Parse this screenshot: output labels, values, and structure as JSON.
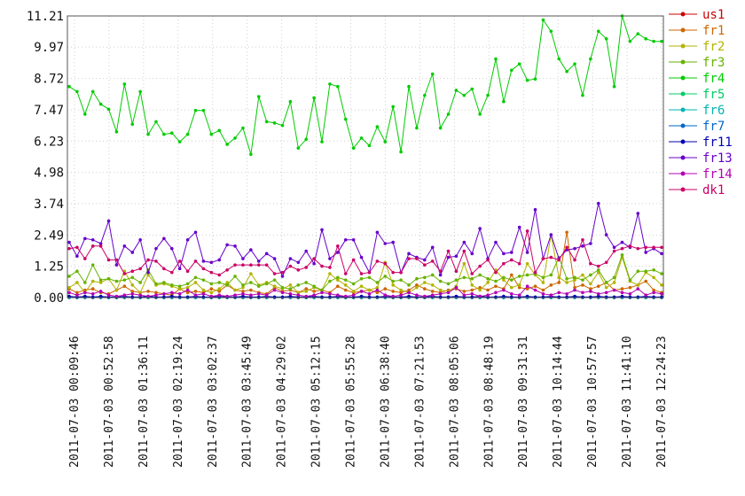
{
  "chart_data": {
    "type": "line",
    "title": "",
    "xlabel": "",
    "ylabel": "",
    "grid": true,
    "legend_position": "right",
    "ylim": [
      0,
      11.21
    ],
    "y_ticks": [
      "0.00",
      "1.25",
      "2.49",
      "3.74",
      "4.98",
      "6.23",
      "7.47",
      "8.72",
      "9.97",
      "11.21"
    ],
    "x_tick_labels": [
      "2011-07-03 00:09:46",
      "2011-07-03 00:52:58",
      "2011-07-03 01:36:11",
      "2011-07-03 02:19:24",
      "2011-07-03 03:02:37",
      "2011-07-03 03:45:49",
      "2011-07-03 04:29:02",
      "2011-07-03 05:12:15",
      "2011-07-03 05:55:28",
      "2011-07-03 06:38:40",
      "2011-07-03 07:21:53",
      "2011-07-03 08:05:06",
      "2011-07-03 08:48:19",
      "2011-07-03 09:31:31",
      "2011-07-03 10:14:44",
      "2011-07-03 10:57:57",
      "2011-07-03 11:41:10",
      "2011-07-03 12:24:23"
    ],
    "series": [
      {
        "name": "us1",
        "color": "#cc0000",
        "values": [
          0,
          0,
          0,
          0,
          0,
          0,
          0,
          0,
          0,
          0,
          0,
          0,
          0,
          0,
          0,
          0,
          0,
          0,
          0,
          0,
          0,
          0,
          0,
          0,
          0,
          0,
          0,
          0,
          0,
          0,
          0,
          0,
          0,
          0,
          0,
          0,
          0,
          0,
          0,
          0,
          0,
          0,
          0,
          0,
          0,
          0,
          0,
          0,
          0,
          0,
          0,
          0,
          0,
          0,
          0,
          0,
          0,
          0,
          0,
          0,
          0,
          0,
          0,
          0,
          0,
          0,
          0,
          0,
          0,
          0,
          0,
          0,
          0,
          0,
          0,
          0
        ]
      },
      {
        "name": "fr1",
        "color": "#cc6600",
        "values": [
          0.35,
          0.2,
          0.3,
          0.35,
          0.2,
          0.15,
          0.3,
          0.45,
          0.25,
          0.2,
          0.25,
          0.2,
          0.15,
          0.1,
          0.35,
          0.2,
          0.25,
          0.2,
          0.35,
          0.25,
          0.5,
          0.3,
          0.25,
          0.3,
          0.2,
          0.15,
          0.4,
          0.25,
          0.3,
          0.2,
          0.35,
          0.25,
          0.3,
          0.2,
          0.45,
          0.3,
          0.2,
          0.25,
          0.3,
          0.2,
          0.35,
          0.25,
          0.2,
          0.3,
          0.5,
          0.35,
          0.25,
          0.2,
          0.3,
          0.35,
          0.25,
          0.3,
          0.4,
          0.3,
          0.45,
          0.35,
          0.9,
          0.4,
          0.35,
          0.45,
          0.3,
          0.5,
          0.6,
          2.6,
          0.4,
          0.5,
          0.35,
          0.45,
          0.6,
          0.3,
          0.35,
          0.4,
          0.5,
          0.65,
          0.3,
          0.2
        ]
      },
      {
        "name": "fr2",
        "color": "#b3b300",
        "values": [
          0.4,
          0.6,
          0.2,
          0.65,
          0.6,
          0.75,
          0.3,
          1.05,
          0.5,
          0.2,
          0.9,
          0.5,
          0.55,
          0.45,
          0.35,
          0.4,
          0.6,
          0.3,
          0.2,
          0.35,
          0.6,
          0.3,
          0.4,
          0.95,
          0.5,
          0.6,
          0.45,
          0.35,
          0.5,
          0.2,
          0.25,
          0.4,
          0.3,
          0.95,
          0.7,
          0.5,
          0.25,
          0.45,
          0.3,
          0.4,
          1.4,
          0.5,
          0.3,
          0.2,
          0.4,
          0.6,
          0.5,
          0.3,
          0.25,
          0.45,
          1.35,
          0.5,
          0.3,
          0.6,
          1.1,
          0.7,
          0.4,
          0.5,
          1.35,
          0.9,
          0.6,
          2.5,
          0.8,
          0.6,
          0.7,
          0.9,
          0.55,
          1.0,
          0.4,
          0.6,
          1.6,
          0.65,
          0.5,
          1.0,
          0.8,
          0.5
        ]
      },
      {
        "name": "fr3",
        "color": "#66b300",
        "values": [
          0.85,
          1.05,
          0.6,
          1.3,
          0.7,
          0.75,
          0.65,
          0.7,
          0.8,
          0.6,
          1.1,
          0.55,
          0.6,
          0.5,
          0.45,
          0.55,
          0.8,
          0.7,
          0.55,
          0.6,
          0.5,
          0.85,
          0.5,
          0.6,
          0.45,
          0.55,
          0.7,
          0.4,
          0.35,
          0.5,
          0.6,
          0.45,
          0.3,
          0.65,
          0.8,
          0.7,
          0.55,
          0.75,
          0.8,
          0.6,
          0.85,
          0.65,
          0.7,
          0.5,
          0.75,
          0.8,
          0.9,
          0.65,
          0.55,
          0.7,
          0.8,
          0.75,
          0.9,
          0.75,
          0.65,
          0.8,
          0.7,
          0.85,
          0.9,
          0.95,
          0.8,
          0.9,
          1.6,
          0.75,
          0.8,
          0.7,
          0.9,
          1.1,
          0.6,
          0.8,
          1.7,
          0.7,
          1.05,
          1.05,
          1.1,
          0.95
        ]
      },
      {
        "name": "fr4",
        "color": "#00cc00",
        "values": [
          8.4,
          8.2,
          7.3,
          8.2,
          7.7,
          7.5,
          6.6,
          8.5,
          6.9,
          8.2,
          6.5,
          7.0,
          6.5,
          6.55,
          6.2,
          6.5,
          7.45,
          7.45,
          6.5,
          6.65,
          6.1,
          6.35,
          6.75,
          5.7,
          8.0,
          7.0,
          6.95,
          6.85,
          7.8,
          5.95,
          6.3,
          7.95,
          6.2,
          8.5,
          8.4,
          7.1,
          5.95,
          6.35,
          6.05,
          6.8,
          6.2,
          7.6,
          5.8,
          8.4,
          6.75,
          8.05,
          8.9,
          6.75,
          7.3,
          8.25,
          8.05,
          8.3,
          7.3,
          8.05,
          9.5,
          7.8,
          9.05,
          9.3,
          8.65,
          8.7,
          11.05,
          10.6,
          9.5,
          9.0,
          9.3,
          8.05,
          9.5,
          10.6,
          10.3,
          8.4,
          11.21,
          10.2,
          10.5,
          10.3,
          10.2,
          10.2
        ]
      },
      {
        "name": "fr5",
        "color": "#00cc66",
        "values": [
          0,
          0,
          0,
          0,
          0,
          0,
          0,
          0,
          0,
          0,
          0,
          0,
          0,
          0,
          0,
          0,
          0,
          0,
          0,
          0,
          0,
          0,
          0,
          0,
          0,
          0,
          0,
          0,
          0,
          0,
          0,
          0,
          0,
          0,
          0,
          0,
          0,
          0,
          0,
          0,
          0,
          0,
          0,
          0,
          0,
          0,
          0,
          0,
          0,
          0,
          0,
          0,
          0,
          0,
          0,
          0,
          0,
          0,
          0,
          0,
          0,
          0,
          0,
          0,
          0,
          0,
          0,
          0,
          0,
          0,
          0,
          0,
          0,
          0,
          0,
          0
        ]
      },
      {
        "name": "fr6",
        "color": "#00b3b3",
        "values": [
          0,
          0,
          0,
          0,
          0,
          0,
          0,
          0,
          0,
          0,
          0,
          0,
          0,
          0,
          0,
          0,
          0,
          0,
          0,
          0,
          0,
          0,
          0,
          0,
          0,
          0,
          0,
          0,
          0,
          0,
          0,
          0,
          0,
          0,
          0,
          0,
          0,
          0,
          0,
          0,
          0,
          0,
          0,
          0,
          0,
          0,
          0,
          0,
          0,
          0,
          0,
          0,
          0,
          0,
          0,
          0,
          0,
          0,
          0,
          0,
          0,
          0,
          0,
          0,
          0,
          0,
          0,
          0,
          0,
          0,
          0,
          0,
          0,
          0,
          0,
          0
        ]
      },
      {
        "name": "fr7",
        "color": "#0066cc",
        "values": [
          0.02,
          0.02,
          0.02,
          0.02,
          0.02,
          0.02,
          0.02,
          0.02,
          0.02,
          0.02,
          0.02,
          0.02,
          0.02,
          0.02,
          0.02,
          0.02,
          0.02,
          0.02,
          0.02,
          0.02,
          0.02,
          0.02,
          0.02,
          0.02,
          0.02,
          0.02,
          0.02,
          0.02,
          0.02,
          0.02,
          0.02,
          0.02,
          0.02,
          0.02,
          0.02,
          0.02,
          0.02,
          0.02,
          0.02,
          0.02,
          0.02,
          0.02,
          0.02,
          0.02,
          0.02,
          0.02,
          0.02,
          0.02,
          0.02,
          0.02,
          0.02,
          0.02,
          0.02,
          0.02,
          0.02,
          0.02,
          0.02,
          0.02,
          0.02,
          0.02,
          0.02,
          0.02,
          0.02,
          0.02,
          0.02,
          0.02,
          0.02,
          0.02,
          0.02,
          0.02,
          0.02,
          0.02,
          0.02,
          0.02,
          0.02,
          0.02
        ]
      },
      {
        "name": "fr11",
        "color": "#0000b3",
        "values": [
          0.05,
          0.02,
          0.05,
          0.02,
          0.05,
          0.02,
          0.02,
          0.05,
          0.02,
          0.02,
          0.05,
          0.02,
          0.02,
          0.05,
          0.02,
          0.02,
          0.05,
          0.02,
          0.02,
          0.05,
          0.02,
          0.02,
          0.05,
          0.02,
          0.02,
          0.05,
          0.02,
          0.02,
          0.05,
          0.02,
          0.02,
          0.05,
          0.02,
          0.02,
          0.05,
          0.02,
          0.02,
          0.05,
          0.02,
          0.02,
          0.05,
          0.02,
          0.02,
          0.05,
          0.02,
          0.02,
          0.05,
          0.02,
          0.02,
          0.05,
          0.02,
          0.02,
          0.05,
          0.02,
          0.02,
          0.05,
          0.02,
          0.02,
          0.05,
          0.02,
          0.02,
          0.05,
          0.02,
          0.02,
          0.05,
          0.02,
          0.02,
          0.05,
          0.02,
          0.02,
          0.05,
          0.02,
          0.02,
          0.05,
          0.02,
          0.02
        ]
      },
      {
        "name": "fr13",
        "color": "#6600cc",
        "values": [
          2.2,
          1.65,
          2.35,
          2.3,
          2.15,
          3.05,
          1.3,
          2.05,
          1.8,
          2.3,
          1.0,
          1.95,
          2.35,
          1.95,
          1.15,
          2.3,
          2.6,
          1.45,
          1.4,
          1.5,
          2.1,
          2.05,
          1.55,
          1.9,
          1.45,
          1.75,
          1.55,
          0.85,
          1.55,
          1.4,
          1.85,
          1.35,
          2.7,
          1.55,
          1.8,
          2.3,
          2.3,
          1.6,
          1.0,
          2.6,
          2.15,
          2.2,
          1.0,
          1.75,
          1.6,
          1.5,
          2.0,
          0.9,
          1.6,
          1.65,
          2.2,
          1.75,
          2.75,
          1.55,
          2.2,
          1.75,
          1.8,
          2.8,
          1.8,
          3.5,
          1.55,
          2.5,
          1.55,
          1.9,
          1.95,
          2.05,
          2.15,
          3.75,
          2.5,
          2.0,
          2.2,
          2.0,
          3.35,
          1.8,
          1.95,
          1.75
        ]
      },
      {
        "name": "fr14",
        "color": "#b300b3",
        "values": [
          0.2,
          0.1,
          0.2,
          0.15,
          0.25,
          0.1,
          0.05,
          0.1,
          0.15,
          0.1,
          0.05,
          0.1,
          0.15,
          0.2,
          0.15,
          0.3,
          0.1,
          0.15,
          0.05,
          0.1,
          0.05,
          0.1,
          0.15,
          0.1,
          0.15,
          0.1,
          0.3,
          0.2,
          0.15,
          0.1,
          0.05,
          0.1,
          0.2,
          0.15,
          0.1,
          0.05,
          0.1,
          0.25,
          0.15,
          0.3,
          0.1,
          0.05,
          0.1,
          0.2,
          0.1,
          0.05,
          0.1,
          0.15,
          0.2,
          0.4,
          0.1,
          0.15,
          0.05,
          0.1,
          0.2,
          0.3,
          0.15,
          0.1,
          0.45,
          0.3,
          0.15,
          0.1,
          0.2,
          0.15,
          0.3,
          0.2,
          0.25,
          0.15,
          0.2,
          0.3,
          0.2,
          0.15,
          0.35,
          0.1,
          0.2,
          0.15
        ]
      },
      {
        "name": "dk1",
        "color": "#cc0066",
        "values": [
          1.95,
          2.0,
          1.55,
          2.05,
          2.05,
          1.5,
          1.5,
          0.95,
          1.05,
          1.15,
          1.5,
          1.45,
          1.15,
          1.0,
          1.45,
          1.05,
          1.45,
          1.15,
          1.0,
          0.9,
          1.1,
          1.3,
          1.3,
          1.3,
          1.3,
          1.3,
          0.95,
          1.0,
          1.25,
          1.1,
          1.2,
          1.55,
          1.25,
          1.2,
          2.05,
          0.95,
          1.5,
          0.95,
          1.0,
          1.45,
          1.35,
          1.0,
          1.0,
          1.55,
          1.55,
          1.3,
          1.45,
          1.05,
          1.85,
          1.05,
          1.85,
          0.95,
          1.25,
          1.5,
          1.0,
          1.35,
          1.5,
          1.35,
          2.65,
          1.0,
          1.55,
          1.6,
          1.5,
          2.0,
          1.5,
          2.3,
          1.35,
          1.25,
          1.4,
          1.85,
          1.95,
          2.05,
          1.95,
          2.0,
          2.0,
          2.0
        ]
      }
    ]
  }
}
